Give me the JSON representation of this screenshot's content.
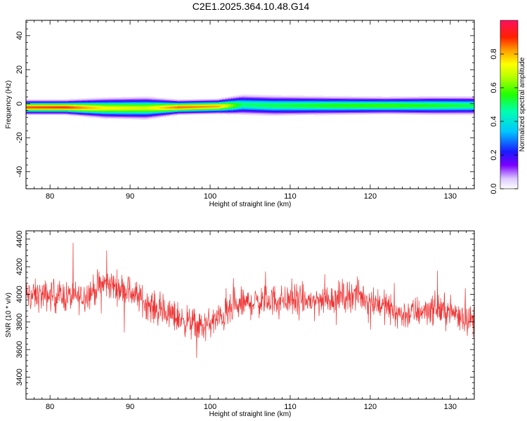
{
  "title": "C2E1.2025.364.10.48.G14",
  "chart_data": [
    {
      "type": "heatmap",
      "name": "spectrogram",
      "xlabel": "Height of straight line (km)",
      "ylabel": "Frequency (Hz)",
      "xlim": [
        77,
        133
      ],
      "ylim": [
        -50,
        49
      ],
      "xticks": [
        80,
        90,
        100,
        110,
        120,
        130
      ],
      "yticks": [
        -40,
        -20,
        0,
        20,
        40
      ],
      "colorbar": {
        "label": "Normalized spectral amplitude",
        "range": [
          0.0,
          1.0
        ],
        "ticks": [
          0.0,
          0.2,
          0.4,
          0.6,
          0.8
        ],
        "tick_labels": [
          "0.0",
          "0.2",
          "0.4",
          "0.6",
          "0.8"
        ]
      },
      "band": [
        {
          "x": 77,
          "center": -2.0,
          "peak": 0.88,
          "spread": 2.5
        },
        {
          "x": 82,
          "center": -2.0,
          "peak": 0.9,
          "spread": 2.5
        },
        {
          "x": 87,
          "center": -2.5,
          "peak": 0.74,
          "spread": 3.5
        },
        {
          "x": 92,
          "center": -2.5,
          "peak": 0.7,
          "spread": 3.8
        },
        {
          "x": 96,
          "center": -2.0,
          "peak": 0.86,
          "spread": 2.5
        },
        {
          "x": 101,
          "center": -1.5,
          "peak": 0.82,
          "spread": 2.5
        },
        {
          "x": 104,
          "center": -0.5,
          "peak": 0.5,
          "spread": 3.5
        },
        {
          "x": 108,
          "center": -1.0,
          "peak": 0.52,
          "spread": 3.5
        },
        {
          "x": 115,
          "center": -1.0,
          "peak": 0.56,
          "spread": 3.2
        },
        {
          "x": 122,
          "center": -1.0,
          "peak": 0.58,
          "spread": 3.0
        },
        {
          "x": 128,
          "center": -1.0,
          "peak": 0.55,
          "spread": 3.2
        },
        {
          "x": 133,
          "center": -1.0,
          "peak": 0.52,
          "spread": 3.2
        }
      ]
    },
    {
      "type": "line",
      "name": "snr",
      "xlabel": "Height of straight line (km)",
      "ylabel": "SNR (10 * v/v)",
      "xlim": [
        77,
        133
      ],
      "ylim": [
        3240,
        4460
      ],
      "xticks": [
        80,
        90,
        100,
        110,
        120,
        130
      ],
      "yticks": [
        3400,
        3600,
        3800,
        4000,
        4200,
        4400
      ],
      "color": "#ee3333",
      "trend": {
        "x": [
          77,
          80,
          84,
          87,
          90,
          93,
          96,
          99,
          101,
          104,
          108,
          113,
          118,
          121,
          124,
          128,
          131,
          133
        ],
        "y": [
          3990,
          3990,
          3980,
          4080,
          4020,
          3900,
          3830,
          3760,
          3820,
          3930,
          3960,
          3950,
          4000,
          3940,
          3850,
          3900,
          3860,
          3800
        ]
      },
      "noise_amplitude": 110,
      "spike_amplitude": 260,
      "sample_step": 0.04
    }
  ]
}
